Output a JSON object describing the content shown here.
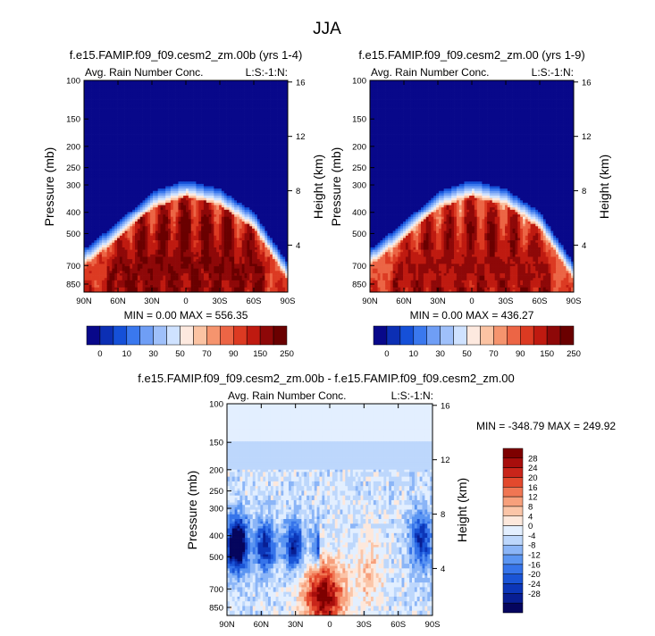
{
  "figure_title": "JJA",
  "colors": {
    "abs_levels": [
      "#08088a",
      "#0c2fb4",
      "#1550d8",
      "#3a78ee",
      "#6f9ef5",
      "#9fc0fa",
      "#cfe2ff",
      "#fde9df",
      "#fbc3a3",
      "#f5946e",
      "#ec6545",
      "#dc3a22",
      "#bf1a10",
      "#8e0808",
      "#6a0000"
    ],
    "diff_levels": [
      "#05055e",
      "#081e93",
      "#0c36b8",
      "#1a54d6",
      "#3674ea",
      "#5b95f2",
      "#8bb5f7",
      "#bdd7fc",
      "#e3efff",
      "#fde8dc",
      "#fbc5a8",
      "#f7a07c",
      "#f07653",
      "#e3492d",
      "#c9251a",
      "#a80e0c",
      "#7e0000"
    ]
  },
  "chart_data": [
    {
      "type": "heatmap",
      "title": "f.e15.FAMIP.f09_f09.cesm2_zm.00b (yrs 1-4)",
      "left_label": "Avg. Rain Number Conc.",
      "right_label": "L:S:-1:N:",
      "xlabel": "",
      "ylabel": "Pressure (mb)",
      "ylabel_right": "Height (km)",
      "x_ticks": [
        "90N",
        "60N",
        "30N",
        "0",
        "30S",
        "60S",
        "90S"
      ],
      "y_ticks": [
        "100",
        "150",
        "200",
        "250",
        "300",
        "400",
        "500",
        "700",
        "850"
      ],
      "y_right_ticks": [
        "16",
        "12",
        "8",
        "4"
      ],
      "stats": "MIN =  0.00  MAX = 556.35",
      "min": 0.0,
      "max": 556.35,
      "peak_value": 300,
      "cloud_top_mb": {
        "90N": 620,
        "60N": 470,
        "30N": 340,
        "0": 300,
        "30S": 330,
        "60S": 420,
        "90S": 720
      }
    },
    {
      "type": "heatmap",
      "title": "f.e15.FAMIP.f09_f09.cesm2_zm.00 (yrs 1-9)",
      "left_label": "Avg. Rain Number Conc.",
      "right_label": "L:S:-1:N:",
      "xlabel": "",
      "ylabel": "Pressure (mb)",
      "ylabel_right": "Height (km)",
      "x_ticks": [
        "90N",
        "60N",
        "30N",
        "0",
        "30S",
        "60S",
        "90S"
      ],
      "y_ticks": [
        "100",
        "150",
        "200",
        "250",
        "300",
        "400",
        "500",
        "700",
        "850"
      ],
      "y_right_ticks": [
        "16",
        "12",
        "8",
        "4"
      ],
      "stats": "MIN =  0.00  MAX = 436.27",
      "min": 0.0,
      "max": 436.27,
      "peak_value": 260,
      "cloud_top_mb": {
        "90N": 620,
        "60N": 470,
        "30N": 340,
        "0": 300,
        "30S": 330,
        "60S": 420,
        "90S": 720
      }
    },
    {
      "type": "heatmap",
      "title": "f.e15.FAMIP.f09_f09.cesm2_zm.00b - f.e15.FAMIP.f09_f09.cesm2_zm.00",
      "left_label": "Avg. Rain Number Conc.",
      "right_label": "L:S:-1:N:",
      "xlabel": "",
      "ylabel": "Pressure (mb)",
      "ylabel_right": "Height (km)",
      "x_ticks": [
        "90N",
        "60N",
        "30N",
        "0",
        "30S",
        "60S",
        "90S"
      ],
      "y_ticks": [
        "100",
        "150",
        "200",
        "250",
        "300",
        "400",
        "500",
        "700",
        "850"
      ],
      "y_right_ticks": [
        "16",
        "12",
        "8",
        "4"
      ],
      "stats": "MIN = -348.79  MAX = 249.92",
      "min": -348.79,
      "max": 249.92
    }
  ],
  "colorbar_abs": {
    "labels": [
      "0",
      "10",
      "30",
      "50",
      "70",
      "90",
      "150",
      "250"
    ],
    "orientation": "horizontal"
  },
  "colorbar_diff": {
    "labels": [
      "28",
      "24",
      "20",
      "16",
      "12",
      "8",
      "4",
      "0",
      "-4",
      "-8",
      "-12",
      "-16",
      "-20",
      "-24",
      "-28"
    ],
    "orientation": "vertical"
  }
}
